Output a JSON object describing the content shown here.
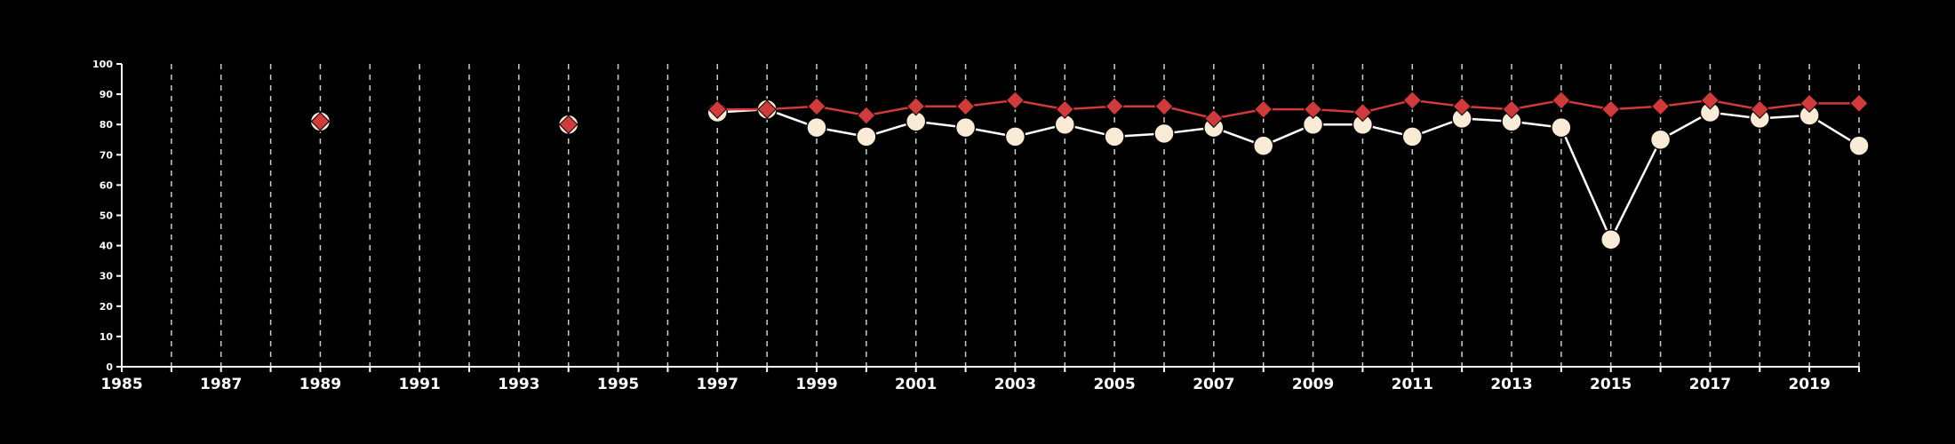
{
  "chart_data": {
    "type": "line",
    "title": "",
    "xlabel": "",
    "ylabel": "",
    "xlim": [
      1985,
      2020
    ],
    "ylim": [
      0,
      100
    ],
    "x_ticks": [
      1985,
      1987,
      1989,
      1991,
      1993,
      1995,
      1997,
      1999,
      2001,
      2003,
      2005,
      2007,
      2009,
      2011,
      2013,
      2015,
      2017,
      2019
    ],
    "y_ticks": [
      0,
      10,
      20,
      30,
      40,
      50,
      60,
      70,
      80,
      90,
      100
    ],
    "vertical_grid_years": [
      1986,
      1987,
      1988,
      1989,
      1990,
      1991,
      1992,
      1993,
      1994,
      1995,
      1996,
      1997,
      1998,
      1999,
      2000,
      2001,
      2002,
      2003,
      2004,
      2005,
      2006,
      2007,
      2008,
      2009,
      2010,
      2011,
      2012,
      2013,
      2014,
      2015,
      2016,
      2017,
      2018,
      2019,
      2020
    ],
    "grid": "vertical-dashed",
    "background_color": "#000000",
    "axis_color": "#ffffff",
    "grid_color": "#cccccc",
    "series": [
      {
        "marker": "circle",
        "color": "#faebd7",
        "line_color": "#ffffff",
        "points": [
          [
            1989,
            81
          ],
          [
            1994,
            80
          ],
          [
            1997,
            84
          ],
          [
            1998,
            85
          ],
          [
            1999,
            79
          ],
          [
            2000,
            76
          ],
          [
            2001,
            81
          ],
          [
            2002,
            79
          ],
          [
            2003,
            76
          ],
          [
            2004,
            80
          ],
          [
            2005,
            76
          ],
          [
            2006,
            77
          ],
          [
            2007,
            79
          ],
          [
            2008,
            73
          ],
          [
            2009,
            80
          ],
          [
            2010,
            80
          ],
          [
            2011,
            76
          ],
          [
            2012,
            82
          ],
          [
            2013,
            81
          ],
          [
            2014,
            79
          ],
          [
            2015,
            42
          ],
          [
            2016,
            75
          ],
          [
            2017,
            84
          ],
          [
            2018,
            82
          ],
          [
            2019,
            83
          ],
          [
            2020,
            73
          ]
        ]
      },
      {
        "marker": "diamond",
        "color": "#d03a3a",
        "line_color": "#d03a3a",
        "points": [
          [
            1989,
            81
          ],
          [
            1994,
            80
          ],
          [
            1997,
            85
          ],
          [
            1998,
            85
          ],
          [
            1999,
            86
          ],
          [
            2000,
            83
          ],
          [
            2001,
            86
          ],
          [
            2002,
            86
          ],
          [
            2003,
            88
          ],
          [
            2004,
            85
          ],
          [
            2005,
            86
          ],
          [
            2006,
            86
          ],
          [
            2007,
            82
          ],
          [
            2008,
            85
          ],
          [
            2009,
            85
          ],
          [
            2010,
            84
          ],
          [
            2011,
            88
          ],
          [
            2012,
            86
          ],
          [
            2013,
            85
          ],
          [
            2014,
            88
          ],
          [
            2015,
            85
          ],
          [
            2016,
            86
          ],
          [
            2017,
            88
          ],
          [
            2018,
            85
          ],
          [
            2019,
            87
          ],
          [
            2020,
            87
          ]
        ]
      }
    ]
  }
}
